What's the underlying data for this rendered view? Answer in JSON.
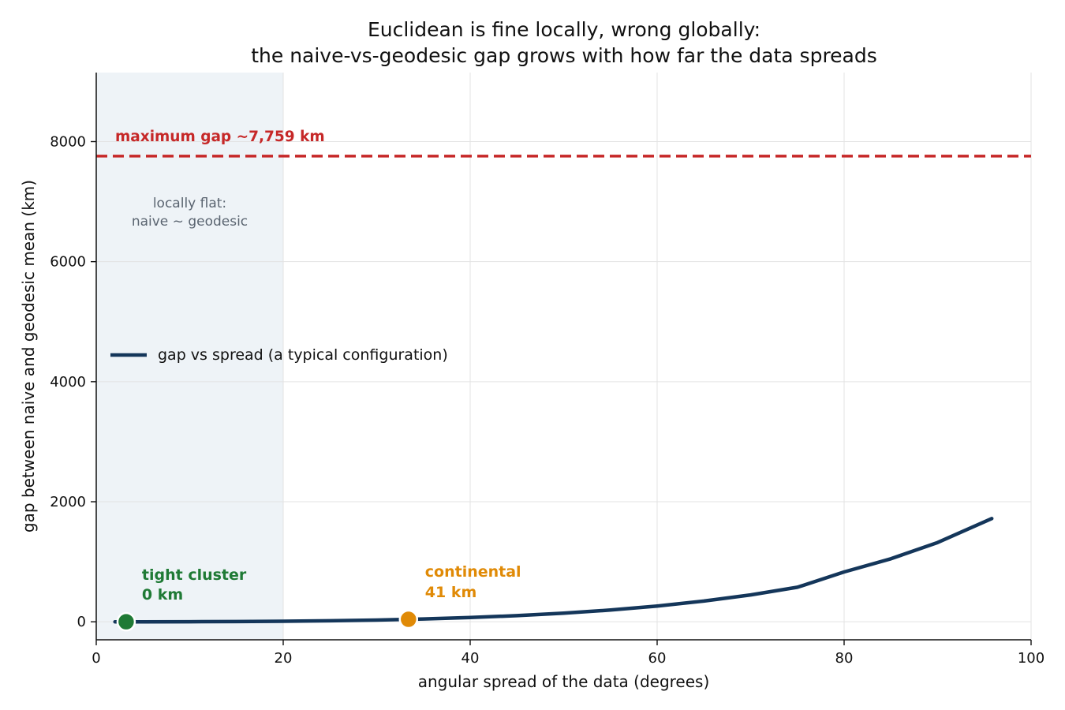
{
  "chart_data": {
    "type": "line",
    "title_lines": [
      "Euclidean is fine locally, wrong globally:",
      "the naive-vs-geodesic gap grows with how far the data spreads"
    ],
    "xlabel": "angular spread of the data (degrees)",
    "ylabel": "gap between naive and geodesic mean (km)",
    "xlim": [
      0,
      100
    ],
    "ylim": [
      -300,
      9150
    ],
    "x_ticks": [
      0,
      20,
      40,
      60,
      80,
      100
    ],
    "y_ticks": [
      0,
      2000,
      4000,
      6000,
      8000
    ],
    "grid": true,
    "series": [
      {
        "name": "gap vs spread (a typical configuration)",
        "color": "#14365a",
        "x": [
          2,
          5,
          10,
          15,
          20,
          25,
          30,
          35,
          40,
          45,
          50,
          55,
          60,
          65,
          70,
          75,
          80,
          85,
          90,
          95.8
        ],
        "y": [
          0,
          0,
          1,
          4,
          9,
          17,
          29,
          47,
          70,
          102,
          144,
          196,
          262,
          345,
          448,
          575,
          830,
          1050,
          1320,
          1720
        ]
      }
    ],
    "legend": {
      "position": "center-left",
      "label": "gap vs spread (a typical configuration)"
    },
    "max_gap": {
      "value": 7759,
      "label": "maximum gap  ~7,759 km",
      "color": "#c62828"
    },
    "local_region": {
      "x_range": [
        0,
        20
      ],
      "label_lines": [
        "locally flat:",
        "naive ~ geodesic"
      ],
      "color": "#eef3f7"
    },
    "points": [
      {
        "x": 3.2,
        "y": 0,
        "color": "#1f7a35",
        "label_lines": [
          "tight cluster",
          "0 km"
        ]
      },
      {
        "x": 33.4,
        "y": 41,
        "color": "#e08a06",
        "label_lines": [
          "continental",
          "41 km"
        ]
      }
    ]
  }
}
